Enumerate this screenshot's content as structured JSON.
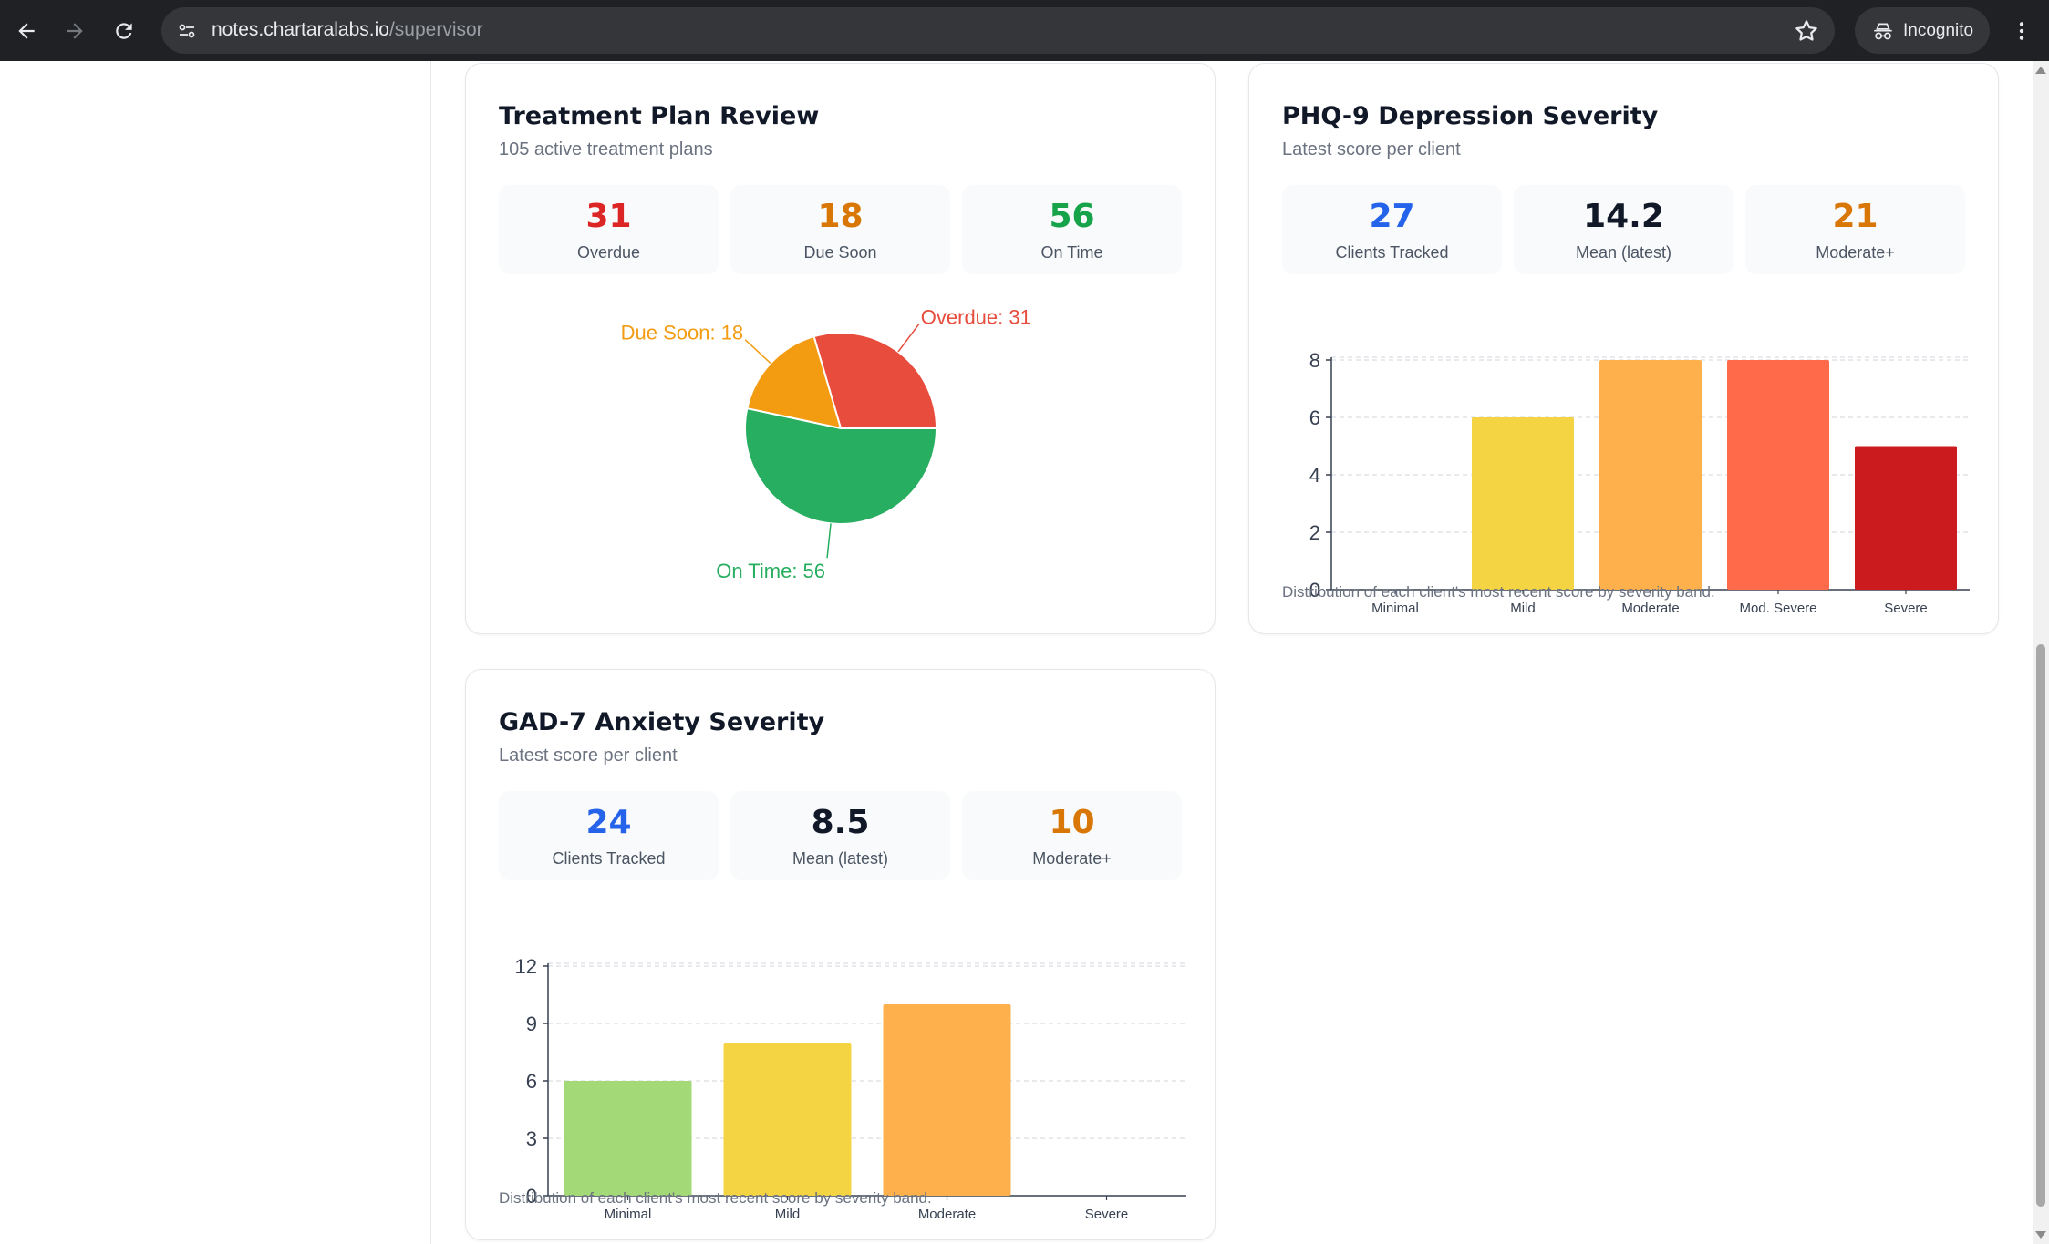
{
  "browser": {
    "url_host": "notes.chartaralabs.io",
    "url_path": "/supervisor",
    "profile_label": "Incognito"
  },
  "colors": {
    "red": "#dc2626",
    "orange": "#d97706",
    "green": "#16a34a",
    "blue": "#2563eb",
    "dark": "#111827"
  },
  "treatment": {
    "title": "Treatment Plan Review",
    "subtitle": "105 active treatment plans",
    "stats": [
      {
        "value": "31",
        "label": "Overdue",
        "color": "#dc2626"
      },
      {
        "value": "18",
        "label": "Due Soon",
        "color": "#d97706"
      },
      {
        "value": "56",
        "label": "On Time",
        "color": "#16a34a"
      }
    ],
    "chart_data": {
      "type": "pie",
      "slices": [
        {
          "label": "Overdue",
          "value": 31,
          "color": "#e74c3c",
          "text": "Overdue: 31"
        },
        {
          "label": "Due Soon",
          "value": 18,
          "color": "#f39c12",
          "text": "Due Soon: 18"
        },
        {
          "label": "On Time",
          "value": 56,
          "color": "#27ae60",
          "text": "On Time: 56"
        }
      ]
    }
  },
  "phq9": {
    "title": "PHQ-9 Depression Severity",
    "subtitle": "Latest score per client",
    "stats": [
      {
        "value": "27",
        "label": "Clients Tracked",
        "color": "#2563eb"
      },
      {
        "value": "14.2",
        "label": "Mean (latest)",
        "color": "#111827"
      },
      {
        "value": "21",
        "label": "Moderate+",
        "color": "#d97706"
      }
    ],
    "note": "Distribution of each client's most recent score by severity band.",
    "chart_data": {
      "type": "bar",
      "categories": [
        "Minimal",
        "Mild",
        "Moderate",
        "Mod. Severe",
        "Severe"
      ],
      "values": [
        0,
        6,
        8,
        8,
        5
      ],
      "colors": [
        "#a3d977",
        "#f4d442",
        "#fdb04b",
        "#ff6b4a",
        "#cc1b1f"
      ],
      "yticks": [
        0,
        2,
        4,
        6,
        8
      ],
      "ylim": [
        0,
        8
      ],
      "grid": true
    }
  },
  "gad7": {
    "title": "GAD-7 Anxiety Severity",
    "subtitle": "Latest score per client",
    "stats": [
      {
        "value": "24",
        "label": "Clients Tracked",
        "color": "#2563eb"
      },
      {
        "value": "8.5",
        "label": "Mean (latest)",
        "color": "#111827"
      },
      {
        "value": "10",
        "label": "Moderate+",
        "color": "#d97706"
      }
    ],
    "note": "Distribution of each client's most recent score by severity band.",
    "chart_data": {
      "type": "bar",
      "categories": [
        "Minimal",
        "Mild",
        "Moderate",
        "Severe"
      ],
      "values": [
        6,
        8,
        10,
        0
      ],
      "colors": [
        "#a3d977",
        "#f4d442",
        "#fdb04b",
        "#cc1b1f"
      ],
      "yticks": [
        0,
        3,
        6,
        9,
        12
      ],
      "ylim": [
        0,
        12
      ],
      "grid": true
    }
  }
}
